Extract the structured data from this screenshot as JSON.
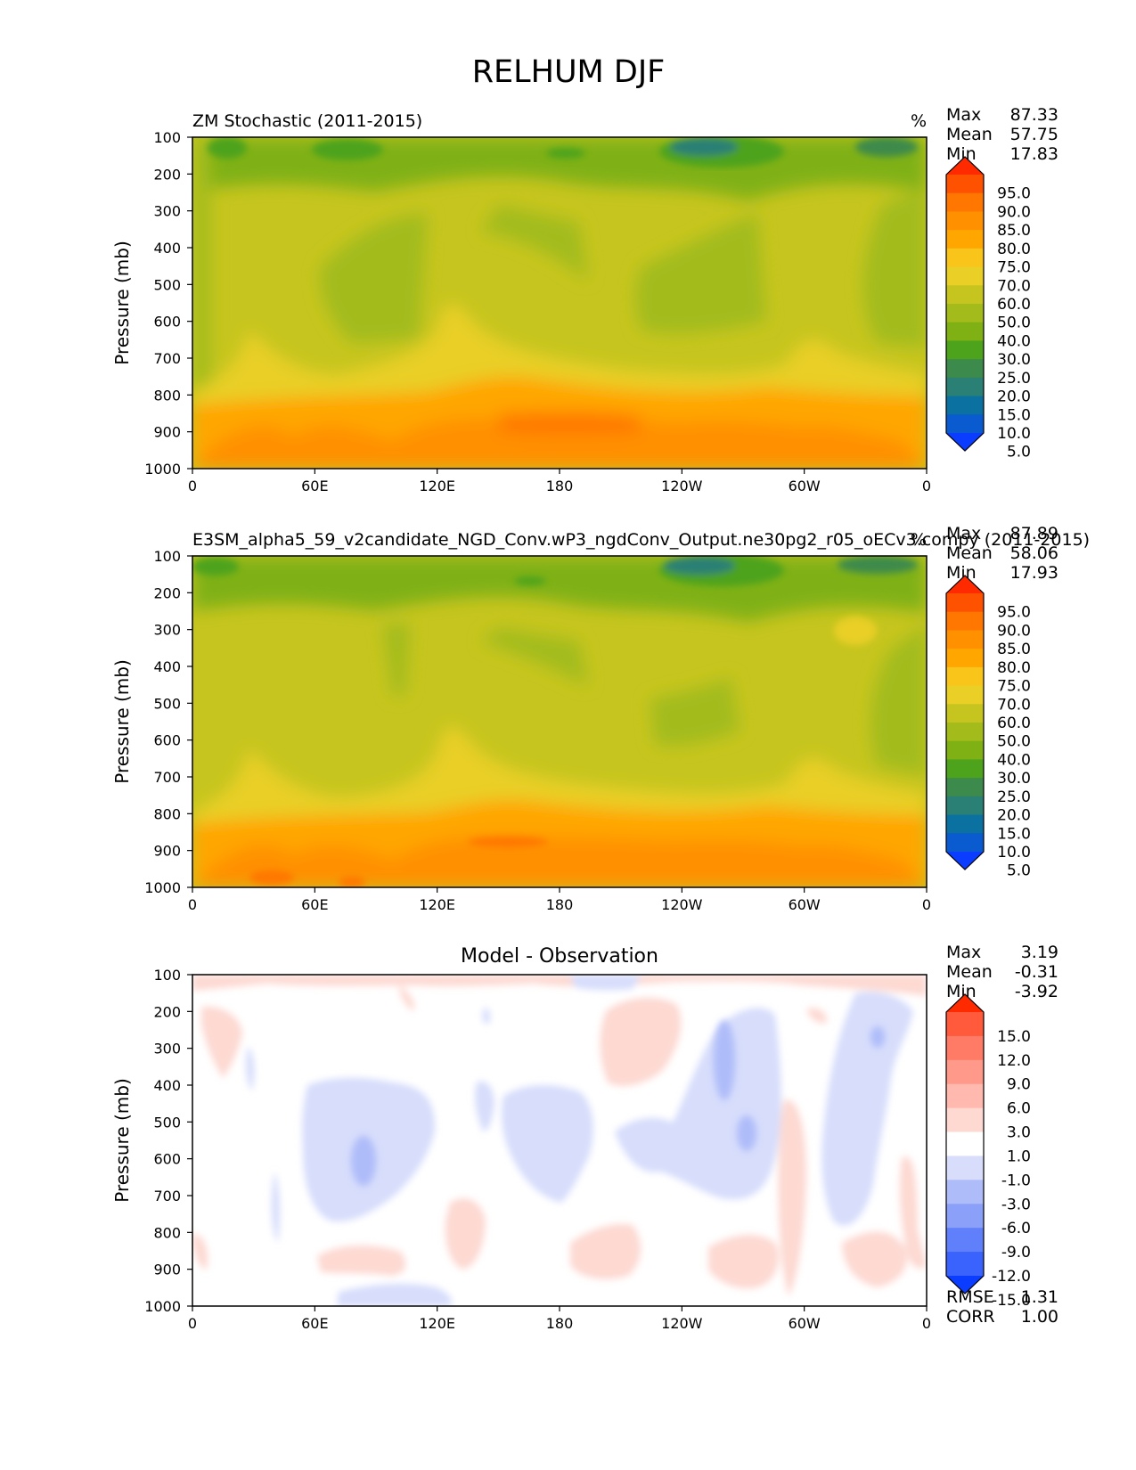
{
  "figure_title": "RELHUM DJF",
  "chart_data": [
    {
      "type": "heatmap",
      "panel": "test",
      "title": "ZM Stochastic (2011-2015)",
      "units": "%",
      "ylabel": "Pressure (mb)",
      "xlabel": "",
      "x_ticks": [
        "0",
        "60E",
        "120E",
        "180",
        "120W",
        "60W",
        "0"
      ],
      "y_ticks": [
        "100",
        "200",
        "300",
        "400",
        "500",
        "600",
        "700",
        "800",
        "900",
        "1000"
      ],
      "ylim": [
        1000,
        100
      ],
      "xlim": [
        0,
        360
      ],
      "stats": {
        "max_label": "Max",
        "max": "87.33",
        "mean_label": "Mean",
        "mean": "57.75",
        "min_label": "Min",
        "min": "17.83"
      },
      "colorbar": {
        "levels": [
          "95.0",
          "90.0",
          "85.0",
          "80.0",
          "75.0",
          "70.0",
          "60.0",
          "50.0",
          "40.0",
          "30.0",
          "25.0",
          "20.0",
          "15.0",
          "10.0",
          "5.0"
        ],
        "colors": [
          "#ff2a00",
          "#ff5200",
          "#ff7700",
          "#ff9000",
          "#ffa600",
          "#f9c51b",
          "#e9cf26",
          "#c6c51f",
          "#a3bc1b",
          "#7fb114",
          "#4ea31c",
          "#3c8a4c",
          "#2b8075",
          "#0a71a1",
          "#0a5ad0",
          "#0a3dff"
        ]
      }
    },
    {
      "type": "heatmap",
      "panel": "reference",
      "title": "E3SM_alpha5_59_v2candidate_NGD_Conv.wP3_ngdConv_Output.ne30pg2_r05_oECv3.compy (2011-2015)",
      "units": "%",
      "ylabel": "Pressure (mb)",
      "xlabel": "",
      "x_ticks": [
        "0",
        "60E",
        "120E",
        "180",
        "120W",
        "60W",
        "0"
      ],
      "y_ticks": [
        "100",
        "200",
        "300",
        "400",
        "500",
        "600",
        "700",
        "800",
        "900",
        "1000"
      ],
      "ylim": [
        1000,
        100
      ],
      "xlim": [
        0,
        360
      ],
      "stats": {
        "max_label": "Max",
        "max": "87.89",
        "mean_label": "Mean",
        "mean": "58.06",
        "min_label": "Min",
        "min": "17.93"
      },
      "colorbar": {
        "levels": [
          "95.0",
          "90.0",
          "85.0",
          "80.0",
          "75.0",
          "70.0",
          "60.0",
          "50.0",
          "40.0",
          "30.0",
          "25.0",
          "20.0",
          "15.0",
          "10.0",
          "5.0"
        ],
        "colors": [
          "#ff2a00",
          "#ff5200",
          "#ff7700",
          "#ff9000",
          "#ffa600",
          "#f9c51b",
          "#e9cf26",
          "#c6c51f",
          "#a3bc1b",
          "#7fb114",
          "#4ea31c",
          "#3c8a4c",
          "#2b8075",
          "#0a71a1",
          "#0a5ad0",
          "#0a3dff"
        ]
      }
    },
    {
      "type": "heatmap",
      "panel": "difference",
      "title": "Model - Observation",
      "ylabel": "Pressure (mb)",
      "xlabel": "",
      "x_ticks": [
        "0",
        "60E",
        "120E",
        "180",
        "120W",
        "60W",
        "0"
      ],
      "y_ticks": [
        "100",
        "200",
        "300",
        "400",
        "500",
        "600",
        "700",
        "800",
        "900",
        "1000"
      ],
      "ylim": [
        1000,
        100
      ],
      "xlim": [
        0,
        360
      ],
      "stats": {
        "max_label": "Max",
        "max": "3.19",
        "mean_label": "Mean",
        "mean": "-0.31",
        "min_label": "Min",
        "min": "-3.92"
      },
      "metrics": {
        "rmse_label": "RMSE",
        "rmse": "1.31",
        "corr_label": "CORR",
        "corr": "1.00"
      },
      "colorbar": {
        "levels": [
          "15.0",
          "12.0",
          "9.0",
          "6.0",
          "3.0",
          "1.0",
          "-1.0",
          "-3.0",
          "-6.0",
          "-9.0",
          "-12.0",
          "-15.0"
        ],
        "colors": [
          "#ff2a00",
          "#ff5a3c",
          "#ff7b66",
          "#ff9a8a",
          "#ffb9ae",
          "#fdd9d2",
          "#ffffff",
          "#d7ddfb",
          "#aebcf9",
          "#8aa0f9",
          "#6080fb",
          "#3a62fd",
          "#0a3dff"
        ]
      }
    }
  ]
}
